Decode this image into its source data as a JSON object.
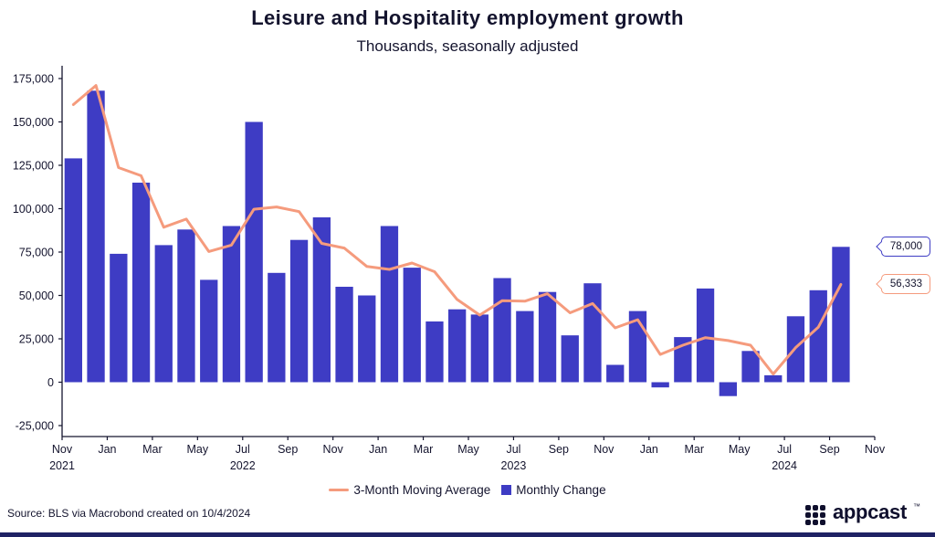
{
  "header": {
    "title": "Leisure and Hospitality employment growth",
    "subtitle": "Thousands, seasonally adjusted"
  },
  "annotations": {
    "last_bar": {
      "label": "78,000",
      "color": "#3E3CC4"
    },
    "last_ma": {
      "label": "56,333",
      "color": "#F59B7D"
    }
  },
  "legend": {
    "moving_average": {
      "label": "3-Month Moving Average",
      "color": "#F59B7D"
    },
    "monthly_change": {
      "label": "Monthly Change",
      "color": "#3E3CC4"
    }
  },
  "footer": {
    "source": "Source: BLS via Macrobond created on 10/4/2024",
    "logo_text": "appcast",
    "logo_tm": "™"
  },
  "chart_data": {
    "type": "bar",
    "title": "Leisure and Hospitality employment growth",
    "subtitle": "Thousands, seasonally adjusted",
    "xlabel": "",
    "ylabel": "Thousands, seasonally adjusted",
    "grid": false,
    "legend_position": "bottom",
    "ylim": [
      -25000,
      175000
    ],
    "axis_months_span": 36,
    "axis_color": "#14142E",
    "x_months": [
      "Nov 2021",
      "Dec 2021",
      "Jan 2022",
      "Feb 2022",
      "Mar 2022",
      "Apr 2022",
      "May 2022",
      "Jun 2022",
      "Jul 2022",
      "Aug 2022",
      "Sep 2022",
      "Oct 2022",
      "Nov 2022",
      "Dec 2022",
      "Jan 2023",
      "Feb 2023",
      "Mar 2023",
      "Apr 2023",
      "May 2023",
      "Jun 2023",
      "Jul 2023",
      "Aug 2023",
      "Sep 2023",
      "Oct 2023",
      "Nov 2023",
      "Dec 2023",
      "Jan 2024",
      "Feb 2024",
      "Mar 2024",
      "Apr 2024",
      "May 2024",
      "Jun 2024",
      "Jul 2024",
      "Aug 2024",
      "Sep 2024"
    ],
    "series": [
      {
        "name": "Monthly Change",
        "type": "bar",
        "color": "#3E3CC4",
        "values": [
          129000,
          168000,
          74000,
          115000,
          79000,
          88000,
          59000,
          90000,
          150000,
          63000,
          82000,
          95000,
          55000,
          50000,
          90000,
          66000,
          35000,
          42000,
          39000,
          60000,
          41000,
          52000,
          27000,
          57000,
          10000,
          41000,
          -3000,
          26000,
          54000,
          -8000,
          18000,
          4000,
          38000,
          53000,
          78000
        ]
      },
      {
        "name": "3-Month Moving Average",
        "type": "line",
        "color": "#F59B7D",
        "values": [
          160000,
          171000,
          123667,
          119000,
          89333,
          94000,
          75333,
          79000,
          99667,
          101000,
          98333,
          80000,
          77333,
          66667,
          65000,
          68667,
          63667,
          47667,
          38667,
          47000,
          46667,
          51000,
          40000,
          45333,
          31333,
          36000,
          16000,
          21333,
          25667,
          24000,
          21333,
          4667,
          20000,
          31667,
          56333
        ]
      }
    ],
    "y_ticks": [
      {
        "value": 175000,
        "label": "175,000"
      },
      {
        "value": 150000,
        "label": "150,000"
      },
      {
        "value": 125000,
        "label": "125,000"
      },
      {
        "value": 100000,
        "label": "100,000"
      },
      {
        "value": 75000,
        "label": "75,000"
      },
      {
        "value": 50000,
        "label": "50,000"
      },
      {
        "value": 25000,
        "label": "25,000"
      },
      {
        "value": 0,
        "label": "0"
      },
      {
        "value": -25000,
        "label": "-25,000"
      }
    ],
    "x_tick_indices": [
      0,
      2,
      4,
      6,
      8,
      10,
      12,
      14,
      16,
      18,
      20,
      22,
      24,
      26,
      28,
      30,
      32,
      34,
      36
    ],
    "x_tick_labels": [
      "Nov",
      "Jan",
      "Mar",
      "May",
      "Jul",
      "Sep",
      "Nov",
      "Jan",
      "Mar",
      "May",
      "Jul",
      "Sep",
      "Nov",
      "Jan",
      "Mar",
      "May",
      "Jul",
      "Sep",
      "Nov"
    ],
    "years": [
      {
        "label": "2021",
        "index": 0
      },
      {
        "label": "2022",
        "index": 8
      },
      {
        "label": "2023",
        "index": 20
      },
      {
        "label": "2024",
        "index": 32
      }
    ]
  }
}
